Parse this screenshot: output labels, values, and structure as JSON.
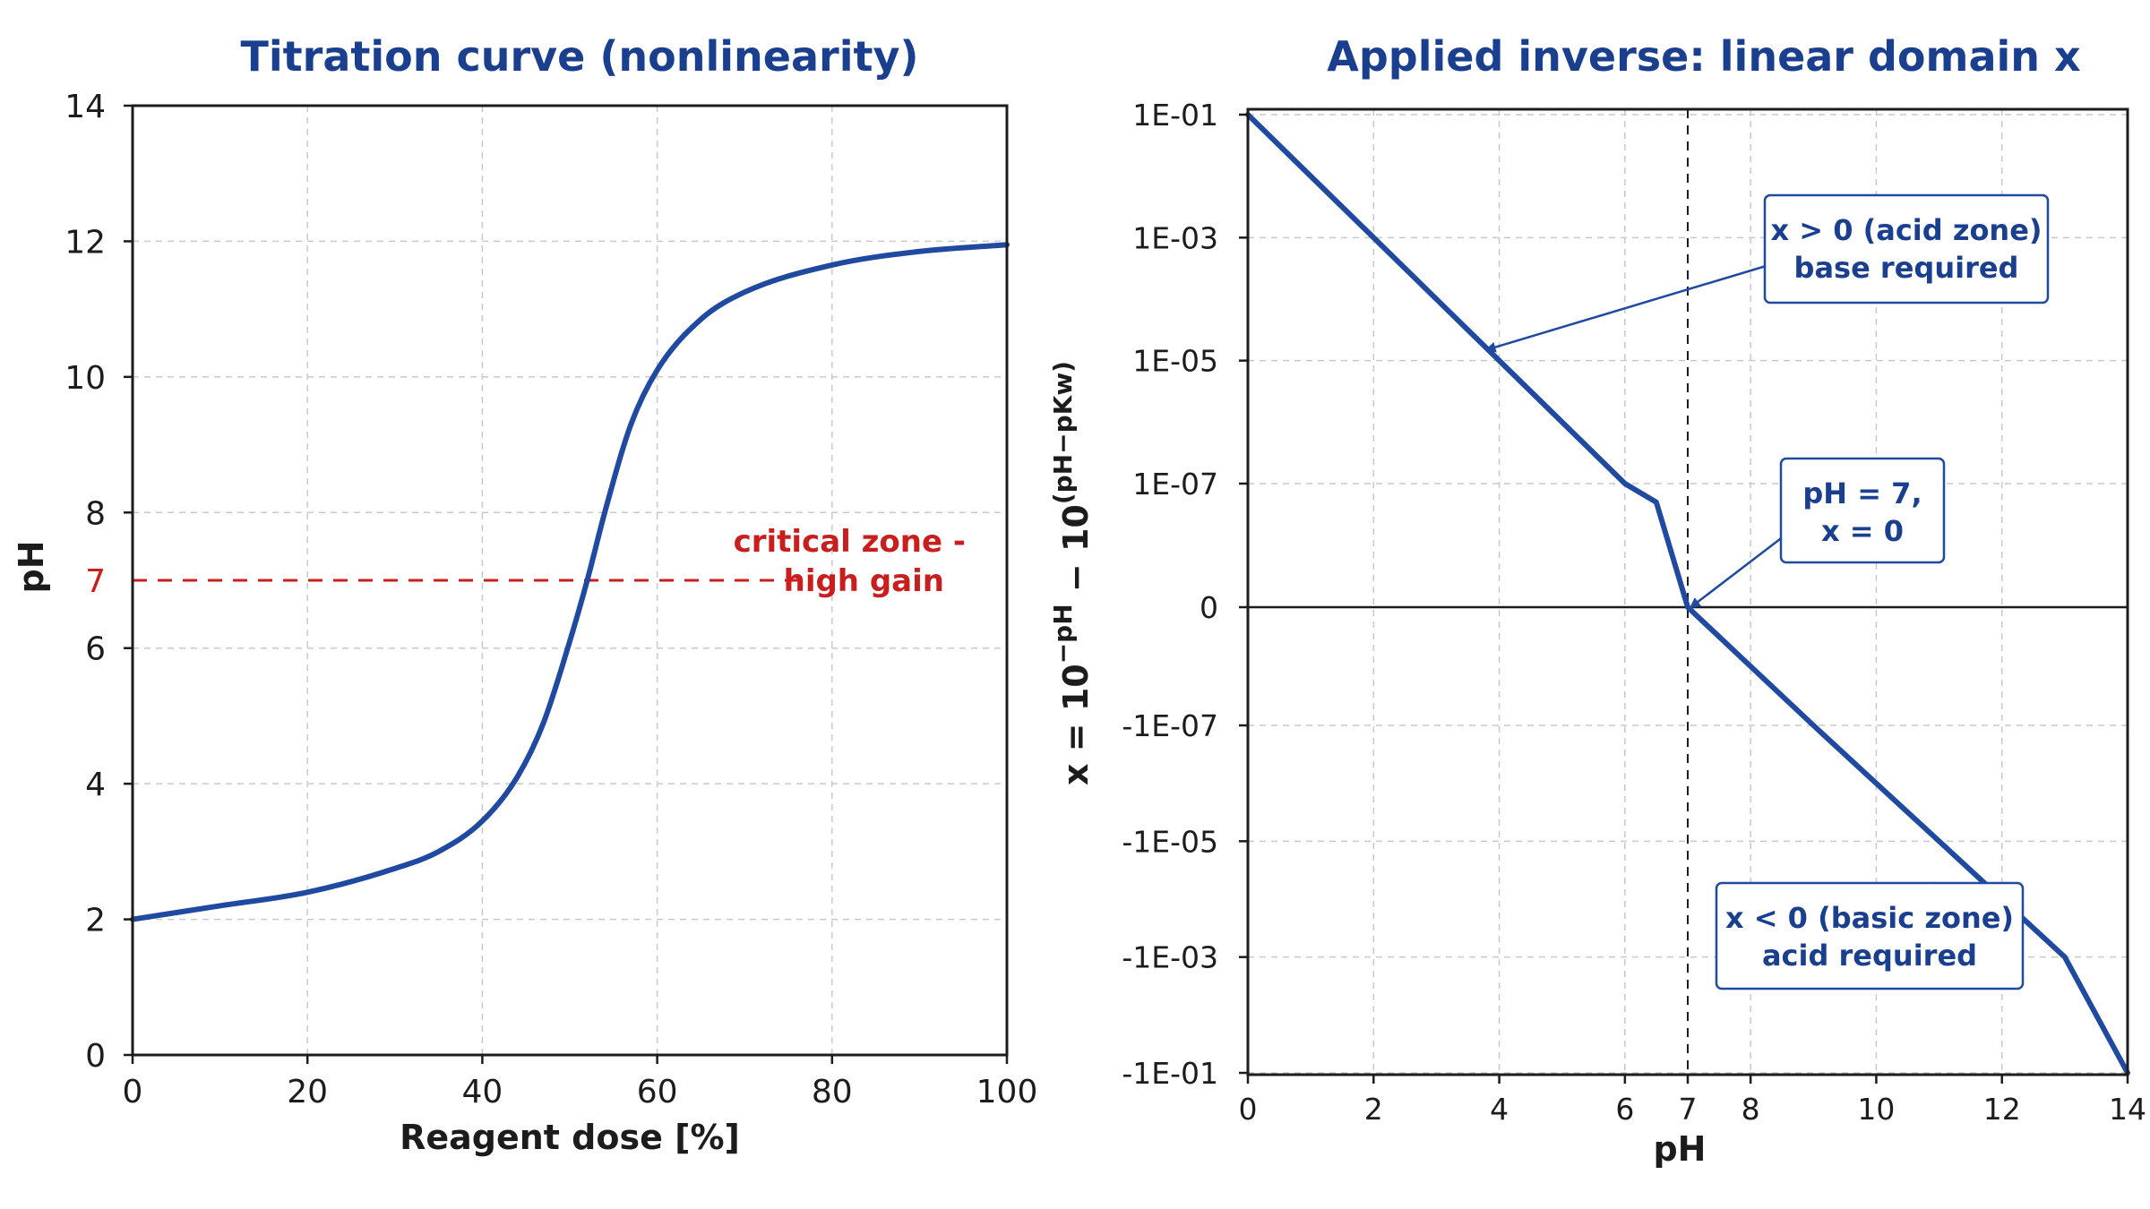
{
  "chart_data": [
    {
      "type": "line",
      "title": "Titration curve (nonlinearity)",
      "xlabel": "Reagent dose [%]",
      "ylabel": "pH",
      "xlim": [
        0,
        100
      ],
      "ylim": [
        0,
        14
      ],
      "x_ticks": [
        "0",
        "20",
        "40",
        "60",
        "80",
        "100"
      ],
      "y_ticks": [
        "0",
        "2",
        "4",
        "6",
        "8",
        "10",
        "12",
        "14"
      ],
      "grid": true,
      "series": [
        {
          "color": "#1f4aa0",
          "x": [
            0,
            10,
            20,
            30,
            35,
            40,
            44,
            47,
            50,
            52,
            54,
            57,
            60,
            65,
            70,
            80,
            90,
            100
          ],
          "y": [
            2.0,
            2.2,
            2.4,
            2.75,
            3.0,
            3.45,
            4.1,
            4.9,
            6.1,
            7.0,
            8.0,
            9.3,
            10.1,
            10.85,
            11.25,
            11.65,
            11.85,
            11.95
          ]
        }
      ],
      "reference_line": {
        "y": 7,
        "label": "7",
        "color": "#c81e1e",
        "annotation": [
          "critical zone -",
          "high gain"
        ]
      }
    },
    {
      "type": "line",
      "title": "Applied inverse: linear domain x",
      "xlabel": "pH",
      "ylabel": "x = 10",
      "ylabel_sup1": "−pH",
      "ylabel_mid": " − 10",
      "ylabel_sup2": "(pH−pKw)",
      "xlim": [
        0,
        14
      ],
      "y_scale": "symmetric-log",
      "x_ticks": [
        "0",
        "2",
        "4",
        "6",
        "7",
        "8",
        "10",
        "12",
        "14"
      ],
      "y_ticks": [
        "1E-01",
        "1E-03",
        "1E-05",
        "1E-07",
        "0",
        "-1E-07",
        "-1E-05",
        "-1E-03",
        "-1E-01"
      ],
      "grid": true,
      "series": [
        {
          "color": "#1f4aa0",
          "x": [
            0,
            1,
            2,
            3,
            4,
            5,
            6,
            6.5,
            7,
            8,
            9,
            10,
            11,
            12,
            13,
            14
          ],
          "y": [
            0.1,
            0.01,
            0.001,
            0.0001,
            1e-05,
            1e-06,
            1e-07,
            5e-08,
            0,
            -1e-08,
            -1e-07,
            -1e-06,
            -1e-05,
            -0.0001,
            -0.001,
            -0.1
          ]
        }
      ],
      "vertical_reference": {
        "x": 7
      },
      "annotations": [
        {
          "lines": [
            "x > 0 (acid zone)",
            "base required"
          ],
          "points_to": {
            "x": 3.8,
            "y": 1.5e-05
          }
        },
        {
          "lines": [
            "pH = 7,",
            "x = 0"
          ],
          "points_to": {
            "x": 7.05,
            "y": 0
          }
        },
        {
          "lines": [
            "x < 0 (basic zone)",
            "acid required"
          ],
          "points_to": {
            "x": 12.0,
            "y": -0.0001
          }
        }
      ]
    }
  ]
}
